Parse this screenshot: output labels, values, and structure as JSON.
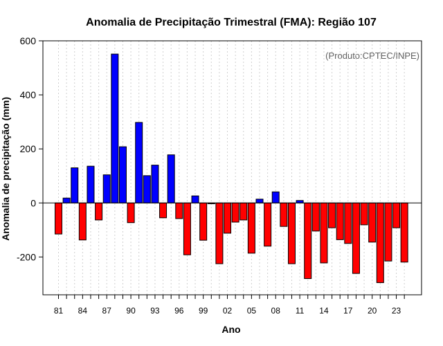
{
  "chart_data": {
    "type": "bar",
    "title": "Anomalia de Precipitação Trimestral (FMA): Região 107",
    "xlabel": "Ano",
    "ylabel": "Anomalia de precipitação (mm)",
    "credit": "(Produto:CPTEC/INPE)",
    "ylim": [
      -340,
      600
    ],
    "yticks": [
      -200,
      0,
      200,
      400,
      600
    ],
    "grid": "vertical dotted",
    "positive_color": "#0000ff",
    "negative_color": "#ff0000",
    "categories": [
      "81",
      "82",
      "83",
      "84",
      "85",
      "86",
      "87",
      "88",
      "89",
      "90",
      "91",
      "92",
      "93",
      "94",
      "95",
      "96",
      "97",
      "98",
      "99",
      "00",
      "01",
      "02",
      "03",
      "04",
      "05",
      "06",
      "07",
      "08",
      "09",
      "10",
      "11",
      "12",
      "13",
      "14",
      "15",
      "16",
      "17",
      "18",
      "19",
      "20",
      "21",
      "22",
      "23",
      "24"
    ],
    "tick_labels": [
      "81",
      "84",
      "87",
      "90",
      "93",
      "96",
      "99",
      "02",
      "05",
      "08",
      "11",
      "14",
      "17",
      "20",
      "23"
    ],
    "values": [
      -115,
      18,
      130,
      -137,
      136,
      -63,
      104,
      551,
      208,
      -73,
      298,
      101,
      140,
      -55,
      178,
      -58,
      -192,
      26,
      -138,
      -3,
      -225,
      -112,
      -71,
      -63,
      -186,
      14,
      -160,
      41,
      -87,
      -225,
      9,
      -280,
      -104,
      -222,
      -92,
      -136,
      -150,
      -261,
      -81,
      -145,
      -295,
      -215,
      -92,
      -219
    ]
  }
}
